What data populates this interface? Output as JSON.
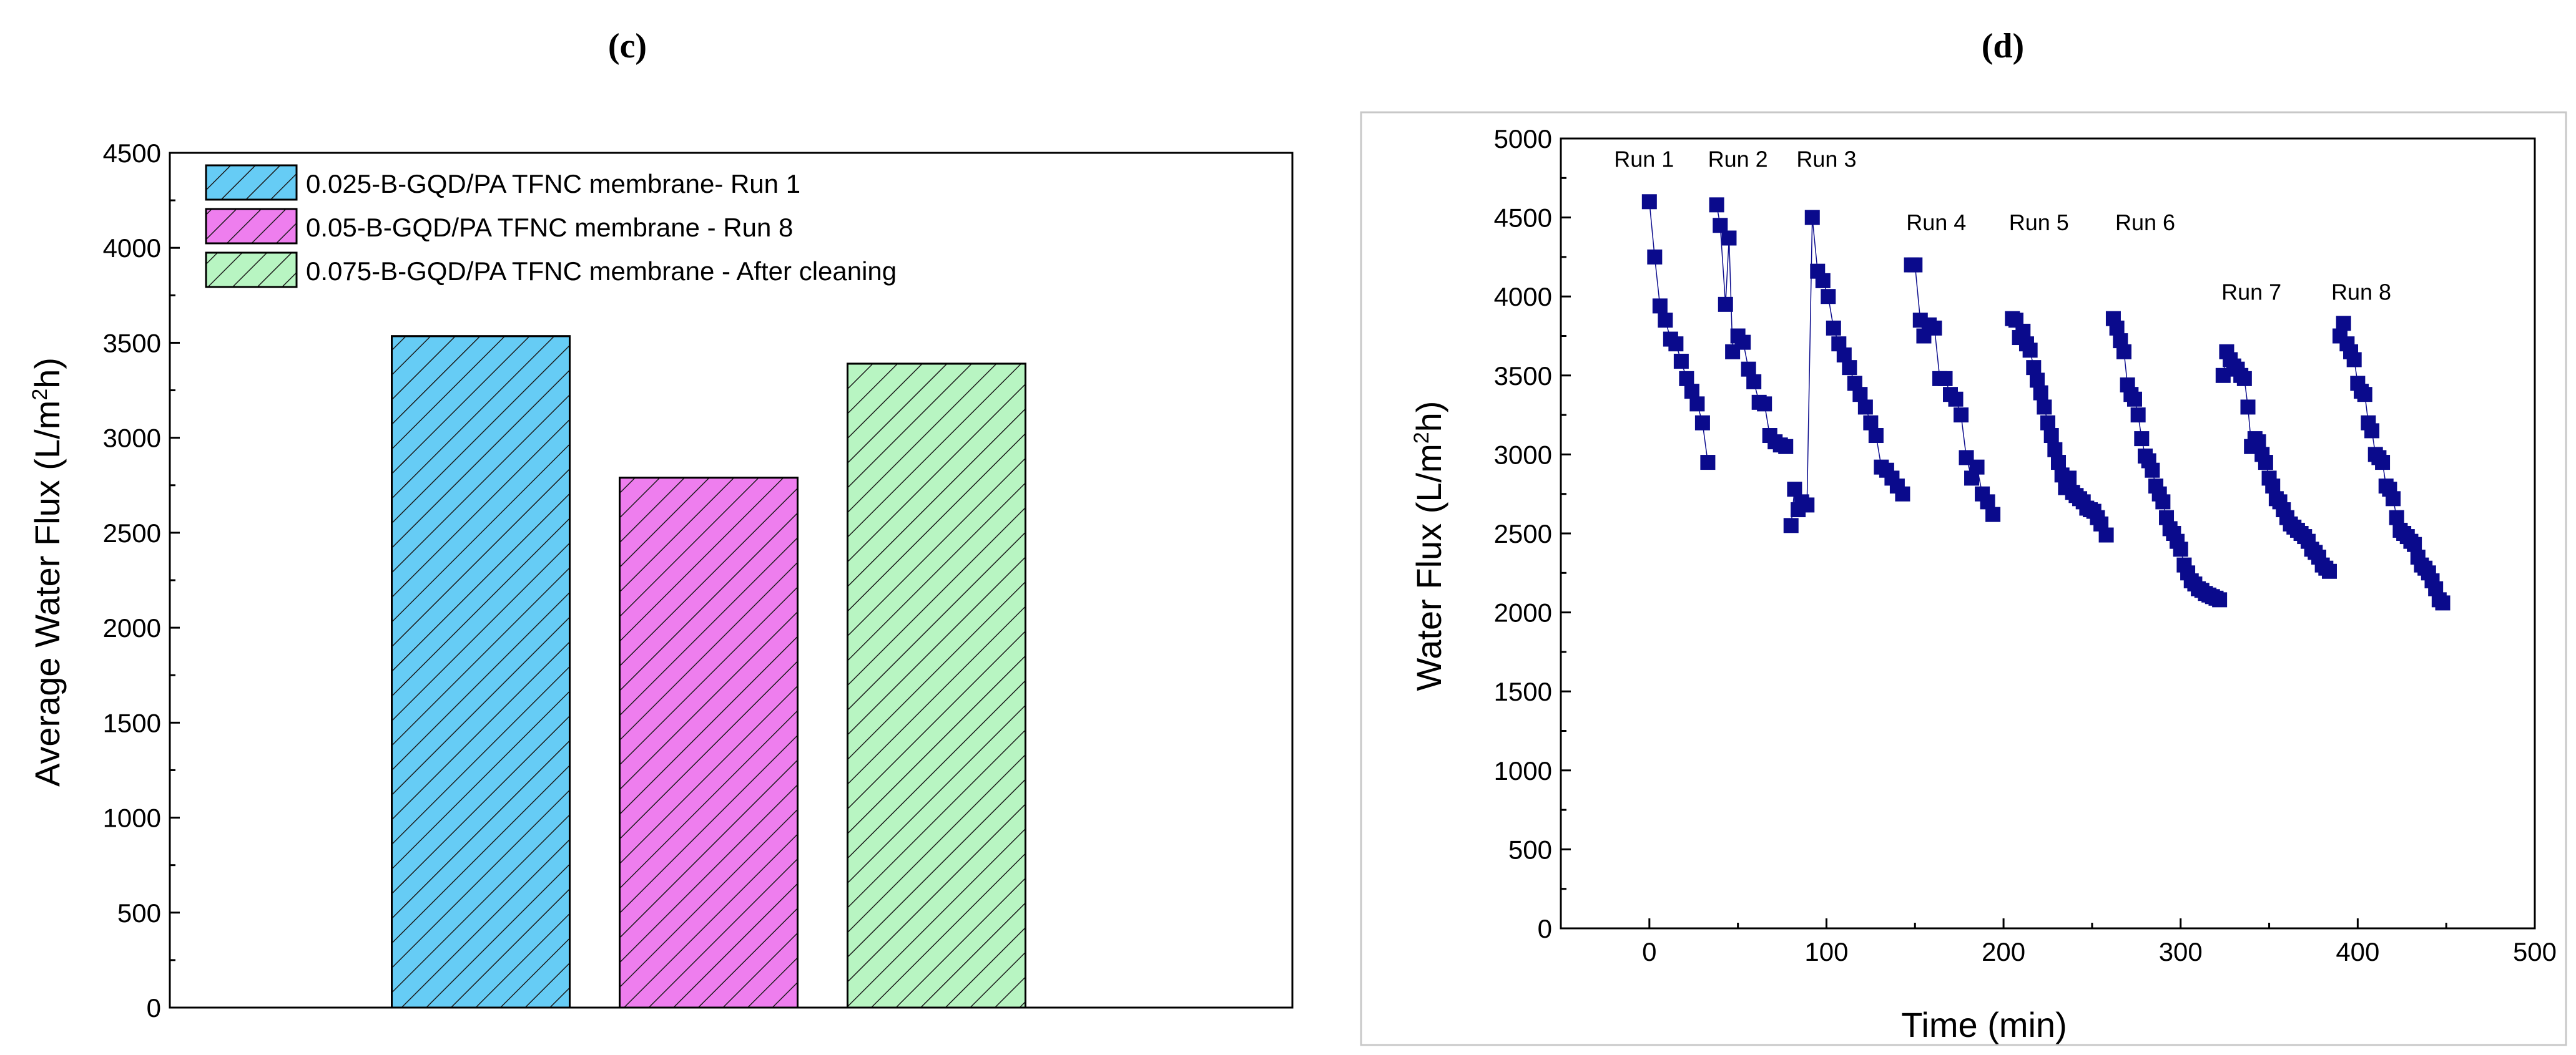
{
  "chart_data": [
    {
      "type": "bar",
      "panel_label": "(c)",
      "ylabel_main": "Average Water Flux (L/m",
      "ylabel_sup": "2",
      "ylabel_end": "h)",
      "xlabel": "",
      "ylim": [
        0,
        4500
      ],
      "yticks": [
        0,
        500,
        1000,
        1500,
        2000,
        2500,
        3000,
        3500,
        4000,
        4500
      ],
      "categories": [
        "0.025-B-GQD/PA TFNC membrane- Run 1",
        "0.05-B-GQD/PA TFNC membrane - Run 8",
        "0.075-B-GQD/PA TFNC membrane - After cleaning"
      ],
      "values": [
        3535,
        2790,
        3390
      ],
      "colors": [
        "#66ccf5",
        "#ee7eee",
        "#b8f5c2"
      ],
      "legend_position": "top-left"
    },
    {
      "type": "scatter",
      "panel_label": "(d)",
      "xlabel": "Time (min)",
      "ylabel_main": "Water Flux (L/m",
      "ylabel_sup": "2",
      "ylabel_end": "h)",
      "xlim": [
        -50,
        500
      ],
      "ylim": [
        0,
        5000
      ],
      "xticks": [
        0,
        100,
        200,
        300,
        400,
        500
      ],
      "yticks": [
        0,
        500,
        1000,
        1500,
        2000,
        2500,
        3000,
        3500,
        4000,
        4500,
        5000
      ],
      "marker_color": "#0a0a8c",
      "runs": [
        {
          "label": "Run 1",
          "label_x": -3,
          "label_y": 4820,
          "x": [
            0,
            3,
            6,
            9,
            12,
            15,
            18,
            21,
            24,
            27,
            30,
            33
          ],
          "y": [
            4600,
            4250,
            3940,
            3850,
            3730,
            3700,
            3590,
            3480,
            3400,
            3320,
            3200,
            2950
          ]
        },
        {
          "label": "Run 2",
          "label_x": 50,
          "label_y": 4820,
          "x": [
            38,
            40,
            43,
            45,
            47,
            50,
            53,
            56,
            59,
            62,
            65,
            68,
            71,
            74,
            77
          ],
          "y": [
            4580,
            4450,
            3950,
            4370,
            3650,
            3750,
            3710,
            3540,
            3460,
            3330,
            3320,
            3120,
            3080,
            3060,
            3050
          ]
        },
        {
          "label": "Run 3",
          "label_x": 100,
          "label_y": 4820,
          "x": [
            80,
            82,
            84,
            86,
            89,
            92,
            95,
            98,
            101,
            104,
            107,
            110,
            113,
            116,
            119,
            122,
            125,
            128,
            131,
            134,
            137,
            140,
            143
          ],
          "y": [
            2550,
            2780,
            2650,
            2700,
            2680,
            4500,
            4160,
            4100,
            4000,
            3800,
            3700,
            3630,
            3550,
            3450,
            3380,
            3300,
            3200,
            3120,
            2920,
            2900,
            2850,
            2800,
            2750
          ]
        },
        {
          "label": "Run 4",
          "label_x": 162,
          "label_y": 4420,
          "x": [
            148,
            150,
            153,
            155,
            158,
            161,
            164,
            167,
            170,
            173,
            176,
            179,
            182,
            185,
            188,
            191,
            194
          ],
          "y": [
            4200,
            4200,
            3850,
            3750,
            3820,
            3800,
            3480,
            3480,
            3380,
            3350,
            3250,
            2980,
            2850,
            2920,
            2750,
            2700,
            2620
          ]
        },
        {
          "label": "Run 5",
          "label_x": 220,
          "label_y": 4420,
          "x": [
            205,
            207,
            209,
            211,
            213,
            215,
            217,
            219,
            221,
            223,
            225,
            227,
            229,
            231,
            233,
            235,
            237,
            239,
            241,
            243,
            245,
            247,
            249,
            251,
            253,
            255,
            258
          ],
          "y": [
            3860,
            3850,
            3740,
            3780,
            3700,
            3660,
            3550,
            3470,
            3390,
            3300,
            3200,
            3120,
            3030,
            2950,
            2870,
            2790,
            2850,
            2760,
            2740,
            2720,
            2700,
            2660,
            2650,
            2640,
            2600,
            2560,
            2490
          ]
        },
        {
          "label": "Run 6",
          "label_x": 280,
          "label_y": 4420,
          "x": [
            262,
            264,
            266,
            268,
            270,
            272,
            274,
            276,
            278,
            280,
            282,
            284,
            286,
            288,
            290,
            292,
            294,
            296,
            298,
            300,
            302,
            304,
            306,
            308,
            310,
            312,
            314,
            316,
            318,
            320,
            322
          ],
          "y": [
            3860,
            3800,
            3720,
            3650,
            3440,
            3380,
            3350,
            3250,
            3100,
            2990,
            2960,
            2900,
            2800,
            2750,
            2700,
            2600,
            2530,
            2500,
            2450,
            2400,
            2300,
            2250,
            2200,
            2180,
            2150,
            2140,
            2120,
            2110,
            2100,
            2090,
            2080
          ]
        },
        {
          "label": "Run 7",
          "label_x": 340,
          "label_y": 3980,
          "x": [
            324,
            326,
            328,
            330,
            332,
            334,
            336,
            338,
            340,
            342,
            344,
            346,
            348,
            350,
            352,
            354,
            356,
            358,
            360,
            362,
            364,
            366,
            368,
            370,
            372,
            374,
            376,
            378,
            380,
            382,
            384
          ],
          "y": [
            3500,
            3650,
            3600,
            3560,
            3540,
            3500,
            3480,
            3300,
            3050,
            3100,
            3080,
            3000,
            2950,
            2850,
            2800,
            2720,
            2700,
            2650,
            2600,
            2560,
            2540,
            2520,
            2500,
            2480,
            2450,
            2400,
            2380,
            2350,
            2300,
            2280,
            2260
          ]
        },
        {
          "label": "Run 8",
          "label_x": 402,
          "label_y": 3980,
          "x": [
            390,
            392,
            394,
            396,
            398,
            400,
            402,
            404,
            406,
            408,
            410,
            412,
            414,
            416,
            418,
            420,
            422,
            424,
            426,
            428,
            430,
            432,
            434,
            436,
            438,
            440,
            442,
            444,
            446,
            448
          ],
          "y": [
            3750,
            3830,
            3700,
            3650,
            3600,
            3450,
            3400,
            3380,
            3200,
            3150,
            3000,
            2980,
            2950,
            2800,
            2780,
            2720,
            2600,
            2520,
            2500,
            2480,
            2450,
            2430,
            2350,
            2300,
            2280,
            2250,
            2200,
            2150,
            2080,
            2060
          ]
        }
      ]
    }
  ]
}
